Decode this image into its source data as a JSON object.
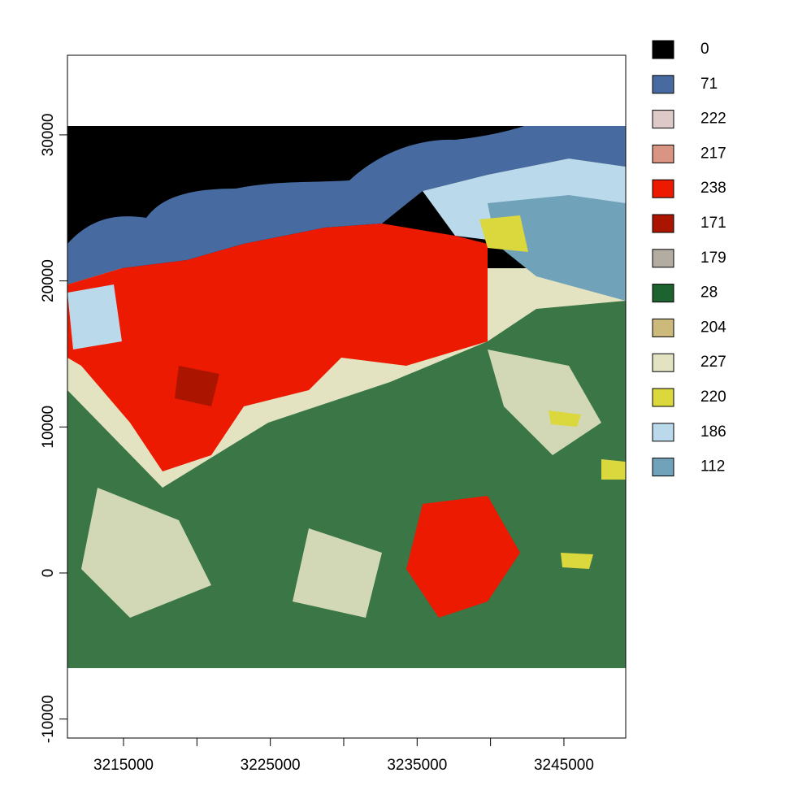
{
  "map": {
    "xlim": [
      3211180,
      3249210
    ],
    "ylim": [
      -11300,
      35450
    ],
    "xticks": [
      3215000,
      3225000,
      3235000,
      3245000
    ],
    "xminor_ticks": [
      3220000,
      3230000,
      3240000
    ],
    "yticks": [
      -10000,
      0,
      10000,
      20000,
      30000
    ],
    "legend": [
      {
        "value": 0,
        "color": "#000000"
      },
      {
        "value": 71,
        "color": "#476ba1"
      },
      {
        "value": 222,
        "color": "#dec9c9"
      },
      {
        "value": 217,
        "color": "#d99482"
      },
      {
        "value": 238,
        "color": "#eb1a00"
      },
      {
        "value": 171,
        "color": "#ab1500"
      },
      {
        "value": 179,
        "color": "#b3aca3"
      },
      {
        "value": 28,
        "color": "#1c6330"
      },
      {
        "value": 204,
        "color": "#ccba7d"
      },
      {
        "value": 227,
        "color": "#e3e3c2"
      },
      {
        "value": 220,
        "color": "#dbd83d"
      },
      {
        "value": 186,
        "color": "#bad9eb"
      },
      {
        "value": 112,
        "color": "#70a3ba"
      }
    ]
  }
}
